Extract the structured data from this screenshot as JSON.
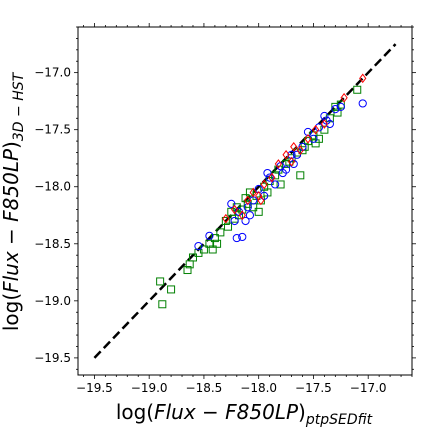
{
  "chart_data": {
    "type": "scatter",
    "title": "",
    "xlabel": {
      "prefix": "log(",
      "main": "Flux − F850LP",
      "suffix": ")",
      "subscript": "ptpSEDfit"
    },
    "ylabel": {
      "prefix": "log(",
      "main": "Flux − F850LP",
      "suffix": ")",
      "subscript": "3D − HST"
    },
    "xlim": [
      -19.65,
      -16.6
    ],
    "ylim": [
      -19.65,
      -16.6
    ],
    "xticks": [
      -19.5,
      -19.0,
      -18.5,
      -18.0,
      -17.5,
      -17.0
    ],
    "xtick_labels": [
      "−19.5",
      "−19.0",
      "−18.5",
      "−18.0",
      "−17.5",
      "−17.0"
    ],
    "yticks": [
      -19.5,
      -19.0,
      -18.5,
      -18.0,
      -17.5,
      -17.0
    ],
    "ytick_labels": [
      "−19.5",
      "−19.0",
      "−18.5",
      "−18.0",
      "−17.5",
      "−17.0"
    ],
    "minor_tick_step": 0.1,
    "grid": false,
    "reference_line": {
      "x": [
        -19.5,
        -16.75
      ],
      "y": [
        -19.5,
        -16.75
      ],
      "color": "#000000",
      "style": "dashed"
    },
    "series": [
      {
        "marker": "square",
        "color": "#008000",
        "points": [
          [
            -18.9,
            -18.83
          ],
          [
            -18.88,
            -19.03
          ],
          [
            -18.8,
            -18.9
          ],
          [
            -18.65,
            -18.73
          ],
          [
            -18.63,
            -18.68
          ],
          [
            -18.6,
            -18.62
          ],
          [
            -18.55,
            -18.58
          ],
          [
            -18.5,
            -18.55
          ],
          [
            -18.45,
            -18.5
          ],
          [
            -18.42,
            -18.55
          ],
          [
            -18.4,
            -18.45
          ],
          [
            -18.38,
            -18.5
          ],
          [
            -18.3,
            -18.3
          ],
          [
            -18.28,
            -18.35
          ],
          [
            -18.25,
            -18.22
          ],
          [
            -18.22,
            -18.28
          ],
          [
            -18.2,
            -18.18
          ],
          [
            -18.15,
            -18.2
          ],
          [
            -18.1,
            -18.15
          ],
          [
            -18.05,
            -18.18
          ],
          [
            -18.02,
            -18.08
          ],
          [
            -18.0,
            -18.22
          ],
          [
            -17.95,
            -18.0
          ],
          [
            -17.92,
            -18.05
          ],
          [
            -17.85,
            -17.9
          ],
          [
            -17.8,
            -17.98
          ],
          [
            -17.75,
            -17.8
          ],
          [
            -17.7,
            -17.75
          ],
          [
            -17.65,
            -17.7
          ],
          [
            -17.62,
            -17.9
          ],
          [
            -17.6,
            -17.68
          ],
          [
            -17.55,
            -17.6
          ],
          [
            -17.5,
            -17.55
          ],
          [
            -17.48,
            -17.62
          ],
          [
            -17.45,
            -17.58
          ],
          [
            -17.4,
            -17.5
          ],
          [
            -17.35,
            -17.4
          ],
          [
            -17.3,
            -17.3
          ],
          [
            -17.28,
            -17.35
          ],
          [
            -17.25,
            -17.28
          ],
          [
            -17.1,
            -17.15
          ],
          [
            -18.12,
            -18.1
          ],
          [
            -18.08,
            -18.05
          ],
          [
            -17.9,
            -17.95
          ],
          [
            -17.72,
            -17.78
          ],
          [
            -18.35,
            -18.4
          ],
          [
            -18.18,
            -18.25
          ],
          [
            -17.98,
            -18.12
          ],
          [
            -17.82,
            -17.85
          ],
          [
            -17.58,
            -17.65
          ]
        ]
      },
      {
        "marker": "circle",
        "color": "#0000ff",
        "points": [
          [
            -18.55,
            -18.52
          ],
          [
            -18.45,
            -18.43
          ],
          [
            -18.25,
            -18.15
          ],
          [
            -18.2,
            -18.45
          ],
          [
            -18.18,
            -18.22
          ],
          [
            -18.15,
            -18.44
          ],
          [
            -18.12,
            -18.3
          ],
          [
            -18.1,
            -18.18
          ],
          [
            -18.08,
            -18.25
          ],
          [
            -18.05,
            -18.12
          ],
          [
            -18.0,
            -18.02
          ],
          [
            -17.95,
            -18.08
          ],
          [
            -17.9,
            -17.92
          ],
          [
            -17.85,
            -17.98
          ],
          [
            -17.8,
            -17.82
          ],
          [
            -17.75,
            -17.85
          ],
          [
            -17.7,
            -17.72
          ],
          [
            -17.65,
            -17.72
          ],
          [
            -17.6,
            -17.65
          ],
          [
            -17.55,
            -17.52
          ],
          [
            -17.5,
            -17.58
          ],
          [
            -17.45,
            -17.48
          ],
          [
            -17.4,
            -17.38
          ],
          [
            -17.35,
            -17.45
          ],
          [
            -17.3,
            -17.32
          ],
          [
            -17.25,
            -17.3
          ],
          [
            -17.05,
            -17.27
          ],
          [
            -18.22,
            -18.3
          ],
          [
            -17.92,
            -17.88
          ],
          [
            -17.78,
            -17.88
          ],
          [
            -17.68,
            -17.8
          ],
          [
            -17.38,
            -17.42
          ]
        ]
      },
      {
        "marker": "diamond",
        "color": "#ff0000",
        "points": [
          [
            -18.3,
            -18.28
          ],
          [
            -18.22,
            -18.2
          ],
          [
            -18.15,
            -18.25
          ],
          [
            -18.1,
            -18.12
          ],
          [
            -18.05,
            -18.05
          ],
          [
            -17.98,
            -18.12
          ],
          [
            -17.95,
            -17.98
          ],
          [
            -17.88,
            -17.92
          ],
          [
            -17.82,
            -17.8
          ],
          [
            -17.75,
            -17.72
          ],
          [
            -17.7,
            -17.78
          ],
          [
            -17.62,
            -17.68
          ],
          [
            -17.55,
            -17.58
          ],
          [
            -17.48,
            -17.5
          ],
          [
            -17.4,
            -17.45
          ],
          [
            -17.22,
            -17.22
          ],
          [
            -17.05,
            -17.05
          ],
          [
            -18.0,
            -18.08
          ],
          [
            -17.68,
            -17.65
          ]
        ]
      }
    ]
  }
}
